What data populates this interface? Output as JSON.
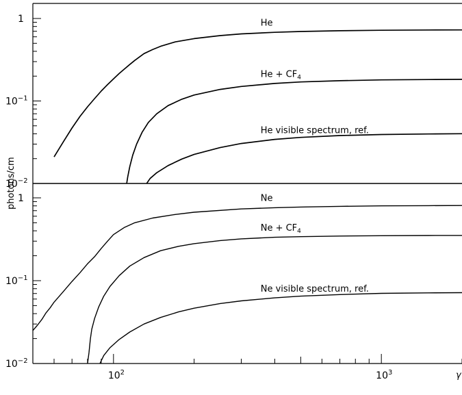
{
  "chart_data": {
    "type": "line",
    "x_scale": "log",
    "y_scale": "log",
    "xlabel": "γ",
    "ylabel": "photons/cm",
    "xlim": [
      50,
      2000
    ],
    "x_ticks": [
      {
        "base": "10",
        "exp": "2"
      },
      {
        "base": "10",
        "exp": "3"
      }
    ],
    "panels": [
      {
        "gas": "He",
        "ylim": [
          0.01,
          1.5
        ],
        "y_ticks": [
          {
            "value": 1,
            "base": "1",
            "exp": ""
          },
          {
            "value": 0.1,
            "base": "10",
            "exp": "−1"
          },
          {
            "value": 0.01,
            "base": "10",
            "exp": "−2"
          }
        ],
        "series": [
          {
            "name": "He",
            "label": {
              "text": "He",
              "sub": "",
              "at_x": 380
            },
            "points": [
              [
                60,
                0.021
              ],
              [
                65,
                0.032
              ],
              [
                70,
                0.047
              ],
              [
                75,
                0.065
              ],
              [
                80,
                0.085
              ],
              [
                85,
                0.107
              ],
              [
                90,
                0.132
              ],
              [
                95,
                0.158
              ],
              [
                100,
                0.185
              ],
              [
                105,
                0.215
              ],
              [
                110,
                0.245
              ],
              [
                115,
                0.277
              ],
              [
                120,
                0.31
              ],
              [
                130,
                0.375
              ],
              [
                140,
                0.42
              ],
              [
                150,
                0.46
              ],
              [
                170,
                0.52
              ],
              [
                200,
                0.57
              ],
              [
                250,
                0.62
              ],
              [
                300,
                0.65
              ],
              [
                400,
                0.68
              ],
              [
                500,
                0.695
              ],
              [
                700,
                0.71
              ],
              [
                1000,
                0.72
              ],
              [
                1500,
                0.725
              ],
              [
                2000,
                0.727
              ]
            ]
          },
          {
            "name": "He + CF4",
            "label": {
              "text": "He + CF",
              "sub": "4",
              "at_x": 380
            },
            "points": [
              [
                112,
                0.01
              ],
              [
                113,
                0.012
              ],
              [
                115,
                0.016
              ],
              [
                118,
                0.022
              ],
              [
                122,
                0.03
              ],
              [
                128,
                0.042
              ],
              [
                135,
                0.055
              ],
              [
                145,
                0.07
              ],
              [
                160,
                0.088
              ],
              [
                180,
                0.105
              ],
              [
                200,
                0.118
              ],
              [
                250,
                0.138
              ],
              [
                300,
                0.15
              ],
              [
                400,
                0.163
              ],
              [
                500,
                0.17
              ],
              [
                700,
                0.176
              ],
              [
                1000,
                0.18
              ],
              [
                1500,
                0.182
              ],
              [
                2000,
                0.183
              ]
            ]
          },
          {
            "name": "He visible spectrum, ref.",
            "label": {
              "text": "He visible spectrum, ref.",
              "sub": "",
              "at_x": 380
            },
            "points": [
              [
                133,
                0.01
              ],
              [
                137,
                0.0115
              ],
              [
                145,
                0.0135
              ],
              [
                160,
                0.0165
              ],
              [
                180,
                0.0198
              ],
              [
                200,
                0.0225
              ],
              [
                250,
                0.0272
              ],
              [
                300,
                0.0305
              ],
              [
                400,
                0.0342
              ],
              [
                500,
                0.0362
              ],
              [
                700,
                0.0381
              ],
              [
                1000,
                0.0392
              ],
              [
                1500,
                0.0398
              ],
              [
                2000,
                0.0401
              ]
            ]
          }
        ]
      },
      {
        "gas": "Ne",
        "ylim": [
          0.01,
          1.5
        ],
        "y_ticks": [
          {
            "value": 1,
            "base": "1",
            "exp": ""
          },
          {
            "value": 0.1,
            "base": "10",
            "exp": "−1"
          },
          {
            "value": 0.01,
            "base": "10",
            "exp": "−2"
          }
        ],
        "series": [
          {
            "name": "Ne",
            "label": {
              "text": "Ne",
              "sub": "",
              "at_x": 380
            },
            "points": [
              [
                50,
                0.025
              ],
              [
                52,
                0.029
              ],
              [
                54,
                0.034
              ],
              [
                56,
                0.041
              ],
              [
                58,
                0.047
              ],
              [
                60,
                0.055
              ],
              [
                65,
                0.074
              ],
              [
                70,
                0.098
              ],
              [
                75,
                0.125
              ],
              [
                80,
                0.16
              ],
              [
                85,
                0.195
              ],
              [
                90,
                0.245
              ],
              [
                95,
                0.3
              ],
              [
                100,
                0.36
              ],
              [
                110,
                0.44
              ],
              [
                120,
                0.5
              ],
              [
                140,
                0.57
              ],
              [
                170,
                0.63
              ],
              [
                200,
                0.67
              ],
              [
                300,
                0.735
              ],
              [
                400,
                0.76
              ],
              [
                500,
                0.775
              ],
              [
                700,
                0.79
              ],
              [
                1000,
                0.8
              ],
              [
                1500,
                0.805
              ],
              [
                2000,
                0.808
              ]
            ]
          },
          {
            "name": "Ne + CF4",
            "label": {
              "text": "Ne + CF",
              "sub": "4",
              "at_x": 380
            },
            "points": [
              [
                80,
                0.01
              ],
              [
                81,
                0.0135
              ],
              [
                82,
                0.02
              ],
              [
                83,
                0.026
              ],
              [
                85,
                0.035
              ],
              [
                88,
                0.048
              ],
              [
                92,
                0.065
              ],
              [
                97,
                0.085
              ],
              [
                105,
                0.115
              ],
              [
                115,
                0.15
              ],
              [
                130,
                0.19
              ],
              [
                150,
                0.23
              ],
              [
                175,
                0.26
              ],
              [
                200,
                0.28
              ],
              [
                250,
                0.305
              ],
              [
                300,
                0.32
              ],
              [
                400,
                0.334
              ],
              [
                500,
                0.34
              ],
              [
                700,
                0.346
              ],
              [
                1000,
                0.349
              ],
              [
                1500,
                0.351
              ],
              [
                2000,
                0.352
              ]
            ]
          },
          {
            "name": "Ne visible spectrum, ref.",
            "label": {
              "text": "Ne visible spectrum, ref.",
              "sub": "",
              "at_x": 380
            },
            "points": [
              [
                89,
                0.01
              ],
              [
                92,
                0.0125
              ],
              [
                97,
                0.0155
              ],
              [
                105,
                0.0195
              ],
              [
                115,
                0.024
              ],
              [
                130,
                0.03
              ],
              [
                150,
                0.036
              ],
              [
                175,
                0.042
              ],
              [
                200,
                0.0465
              ],
              [
                250,
                0.053
              ],
              [
                300,
                0.057
              ],
              [
                400,
                0.062
              ],
              [
                500,
                0.065
              ],
              [
                700,
                0.068
              ],
              [
                1000,
                0.0703
              ],
              [
                1500,
                0.0712
              ],
              [
                2000,
                0.0717
              ]
            ]
          }
        ]
      }
    ]
  }
}
